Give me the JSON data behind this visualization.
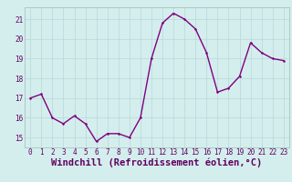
{
  "x": [
    0,
    1,
    2,
    3,
    4,
    5,
    6,
    7,
    8,
    9,
    10,
    11,
    12,
    13,
    14,
    15,
    16,
    17,
    18,
    19,
    20,
    21,
    22,
    23
  ],
  "y": [
    17.0,
    17.2,
    16.0,
    15.7,
    16.1,
    15.7,
    14.8,
    15.2,
    15.2,
    15.0,
    16.0,
    19.0,
    20.8,
    21.3,
    21.0,
    20.5,
    19.3,
    17.3,
    17.5,
    18.1,
    19.8,
    19.3,
    19.0,
    18.9
  ],
  "line_color": "#800080",
  "marker_color": "#800080",
  "bg_color": "#d4eeed",
  "grid_color": "#b8d8d8",
  "xlabel": "Windchill (Refroidissement éolien,°C)",
  "xlim": [
    -0.5,
    23.5
  ],
  "ylim": [
    14.5,
    21.6
  ],
  "yticks": [
    15,
    16,
    17,
    18,
    19,
    20,
    21
  ],
  "xticks": [
    0,
    1,
    2,
    3,
    4,
    5,
    6,
    7,
    8,
    9,
    10,
    11,
    12,
    13,
    14,
    15,
    16,
    17,
    18,
    19,
    20,
    21,
    22,
    23
  ],
  "tick_fontsize": 5.5,
  "xlabel_fontsize": 7.5,
  "linewidth": 1.0,
  "markersize": 2.5
}
